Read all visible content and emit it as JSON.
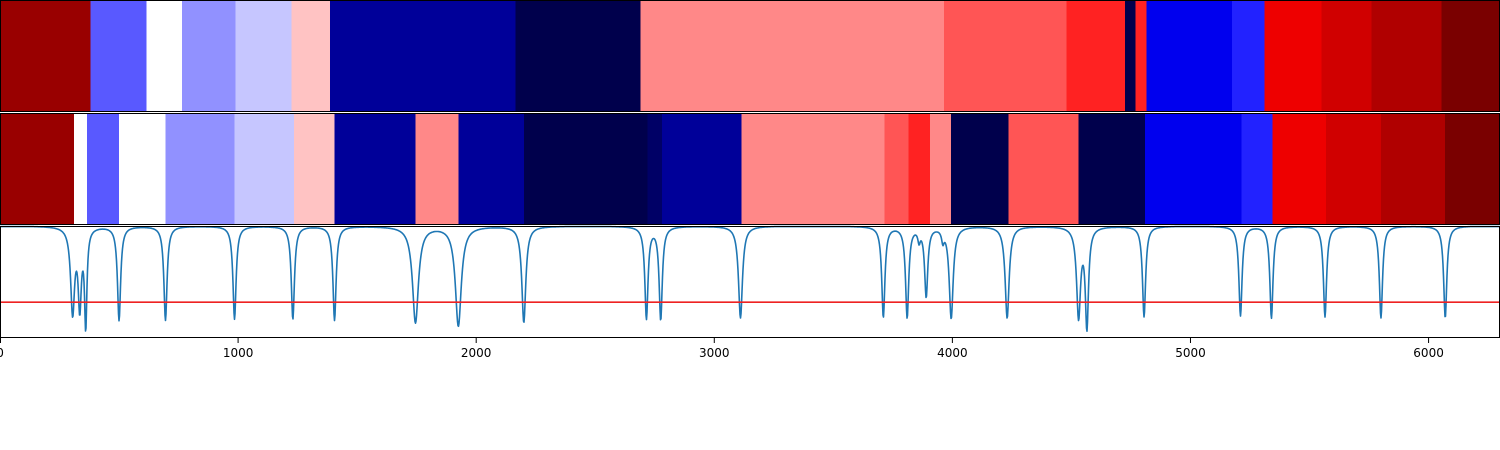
{
  "chart_data": {
    "type": "heatmap",
    "title": "",
    "xlabel": "",
    "ylabel": "",
    "xlim": [
      0,
      6300
    ],
    "x_ticks": [
      "0",
      "1000",
      "2000",
      "3000",
      "4000",
      "5000",
      "6000"
    ],
    "x_tick_values": [
      0,
      1000,
      2000,
      3000,
      4000,
      5000,
      6000
    ],
    "segmentation_tracks": [
      {
        "name": "top-track",
        "segments": [
          {
            "start": 0,
            "end": 380,
            "color": "#990000"
          },
          {
            "start": 380,
            "end": 615,
            "color": "#5959ff"
          },
          {
            "start": 615,
            "end": 765,
            "color": "#ffffff"
          },
          {
            "start": 765,
            "end": 990,
            "color": "#9191ff"
          },
          {
            "start": 990,
            "end": 1225,
            "color": "#c6c6ff"
          },
          {
            "start": 1225,
            "end": 1385,
            "color": "#ffc3c3"
          },
          {
            "start": 1385,
            "end": 2165,
            "color": "#000099"
          },
          {
            "start": 2165,
            "end": 2690,
            "color": "#00004c"
          },
          {
            "start": 2690,
            "end": 3965,
            "color": "#ff8888"
          },
          {
            "start": 3965,
            "end": 4480,
            "color": "#ff5555"
          },
          {
            "start": 4480,
            "end": 4725,
            "color": "#ff2222"
          },
          {
            "start": 4725,
            "end": 4770,
            "color": "#00004c"
          },
          {
            "start": 4770,
            "end": 4815,
            "color": "#ff2222"
          },
          {
            "start": 4815,
            "end": 5175,
            "color": "#0000ee"
          },
          {
            "start": 5175,
            "end": 5310,
            "color": "#2222ff"
          },
          {
            "start": 5310,
            "end": 5550,
            "color": "#ee0000"
          },
          {
            "start": 5550,
            "end": 5760,
            "color": "#d00000"
          },
          {
            "start": 5760,
            "end": 6055,
            "color": "#b00000"
          },
          {
            "start": 6055,
            "end": 6300,
            "color": "#7a0000"
          }
        ]
      },
      {
        "name": "bottom-track",
        "segments": [
          {
            "start": 0,
            "end": 310,
            "color": "#990000"
          },
          {
            "start": 310,
            "end": 365,
            "color": "#ffffff"
          },
          {
            "start": 365,
            "end": 500,
            "color": "#5959ff"
          },
          {
            "start": 500,
            "end": 695,
            "color": "#ffffff"
          },
          {
            "start": 695,
            "end": 985,
            "color": "#9191ff"
          },
          {
            "start": 985,
            "end": 1235,
            "color": "#c6c6ff"
          },
          {
            "start": 1235,
            "end": 1405,
            "color": "#ffc3c3"
          },
          {
            "start": 1405,
            "end": 1745,
            "color": "#000099"
          },
          {
            "start": 1745,
            "end": 1925,
            "color": "#ff8888"
          },
          {
            "start": 1925,
            "end": 2200,
            "color": "#000099"
          },
          {
            "start": 2200,
            "end": 2720,
            "color": "#00004c"
          },
          {
            "start": 2720,
            "end": 2780,
            "color": "#000066"
          },
          {
            "start": 2780,
            "end": 3115,
            "color": "#000099"
          },
          {
            "start": 3115,
            "end": 3715,
            "color": "#ff8888"
          },
          {
            "start": 3715,
            "end": 3815,
            "color": "#ff5555"
          },
          {
            "start": 3815,
            "end": 3905,
            "color": "#ff2222"
          },
          {
            "start": 3905,
            "end": 3995,
            "color": "#ff8888"
          },
          {
            "start": 3995,
            "end": 4235,
            "color": "#00004c"
          },
          {
            "start": 4235,
            "end": 4530,
            "color": "#ff5555"
          },
          {
            "start": 4530,
            "end": 4810,
            "color": "#00004c"
          },
          {
            "start": 4810,
            "end": 5215,
            "color": "#0000ee"
          },
          {
            "start": 5215,
            "end": 5345,
            "color": "#2222ff"
          },
          {
            "start": 5345,
            "end": 5570,
            "color": "#ee0000"
          },
          {
            "start": 5570,
            "end": 5800,
            "color": "#d00000"
          },
          {
            "start": 5800,
            "end": 6070,
            "color": "#b00000"
          },
          {
            "start": 6070,
            "end": 6300,
            "color": "#7a0000"
          }
        ]
      }
    ],
    "novelty_curve": {
      "color": "#1f77b4",
      "baseline": 1.0,
      "ylim": [
        0,
        1.0
      ],
      "dips": [
        {
          "x": 305,
          "depth": 0.76,
          "width": 10
        },
        {
          "x": 335,
          "depth": 0.68,
          "width": 8
        },
        {
          "x": 360,
          "depth": 0.86,
          "width": 6
        },
        {
          "x": 500,
          "depth": 0.84,
          "width": 8
        },
        {
          "x": 695,
          "depth": 0.84,
          "width": 8
        },
        {
          "x": 985,
          "depth": 0.83,
          "width": 8
        },
        {
          "x": 1230,
          "depth": 0.83,
          "width": 8
        },
        {
          "x": 1405,
          "depth": 0.84,
          "width": 8
        },
        {
          "x": 1745,
          "depth": 0.86,
          "width": 15
        },
        {
          "x": 1925,
          "depth": 0.89,
          "width": 15
        },
        {
          "x": 2200,
          "depth": 0.86,
          "width": 10
        },
        {
          "x": 2715,
          "depth": 0.82,
          "width": 8
        },
        {
          "x": 2775,
          "depth": 0.83,
          "width": 8
        },
        {
          "x": 3110,
          "depth": 0.82,
          "width": 10
        },
        {
          "x": 3710,
          "depth": 0.81,
          "width": 8
        },
        {
          "x": 3810,
          "depth": 0.81,
          "width": 8
        },
        {
          "x": 3860,
          "depth": 0.1,
          "width": 6
        },
        {
          "x": 3890,
          "depth": 0.62,
          "width": 8
        },
        {
          "x": 3960,
          "depth": 0.1,
          "width": 6
        },
        {
          "x": 3995,
          "depth": 0.82,
          "width": 10
        },
        {
          "x": 4230,
          "depth": 0.82,
          "width": 10
        },
        {
          "x": 4530,
          "depth": 0.8,
          "width": 10
        },
        {
          "x": 4565,
          "depth": 0.88,
          "width": 8
        },
        {
          "x": 4805,
          "depth": 0.81,
          "width": 8
        },
        {
          "x": 5210,
          "depth": 0.8,
          "width": 8
        },
        {
          "x": 5340,
          "depth": 0.82,
          "width": 8
        },
        {
          "x": 5565,
          "depth": 0.81,
          "width": 8
        },
        {
          "x": 5800,
          "depth": 0.82,
          "width": 8
        },
        {
          "x": 6070,
          "depth": 0.82,
          "width": 8
        }
      ]
    },
    "threshold_line": {
      "value": 0.32,
      "color": "#ee2222"
    }
  }
}
